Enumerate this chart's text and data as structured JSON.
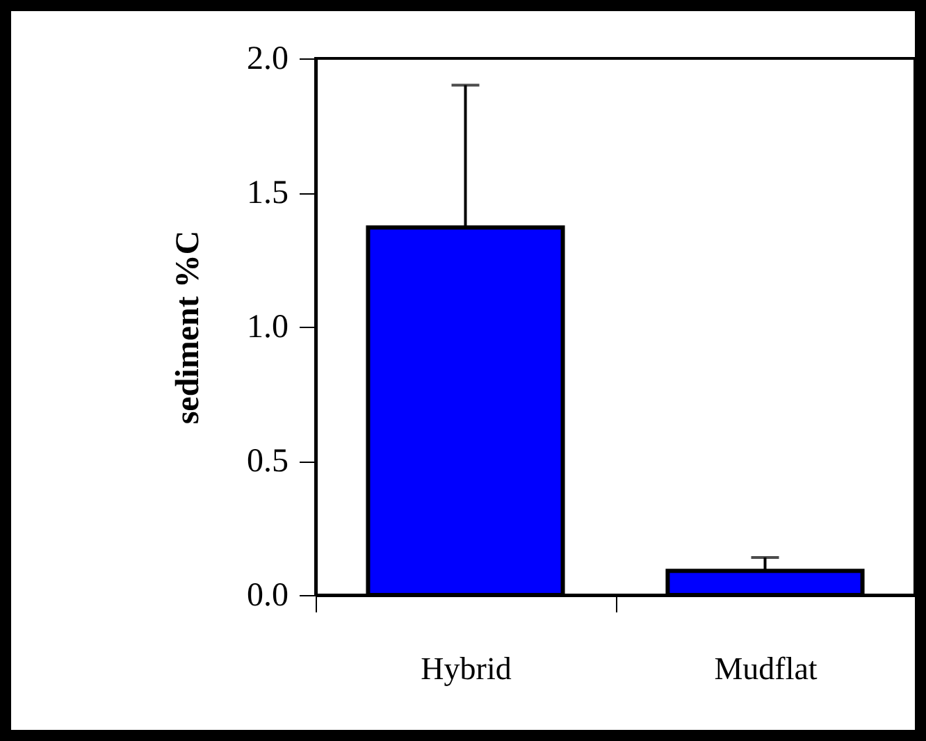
{
  "chart_data": {
    "type": "bar",
    "ylabel": "sediment %C",
    "categories": [
      "Hybrid",
      "Mudflat"
    ],
    "values": [
      1.37,
      0.09
    ],
    "errors": [
      [
        1.37,
        1.9
      ],
      [
        0.09,
        0.14
      ]
    ],
    "color": "#0000ff",
    "ylim": [
      0,
      2
    ],
    "yticks": [
      {
        "value": 0,
        "label": "0.0"
      },
      {
        "value": 0.5,
        "label": "0.5"
      },
      {
        "value": 1,
        "label": "1.0"
      },
      {
        "value": 1.5,
        "label": "1.5"
      },
      {
        "value": 2,
        "label": "2.0"
      }
    ],
    "grid": false
  }
}
